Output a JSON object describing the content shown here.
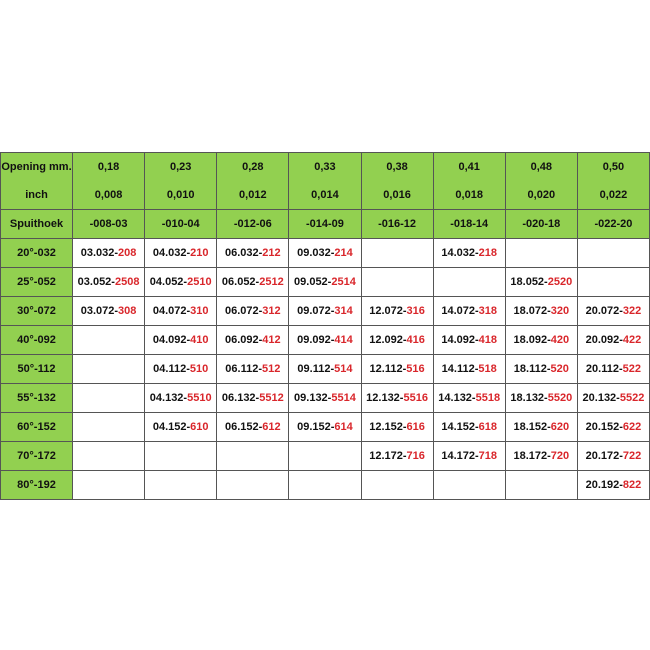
{
  "header": {
    "opening_label": "Opening mm.",
    "inch_label": "inch",
    "angle_label": "Spuithoek",
    "openings": [
      "0,18",
      "0,23",
      "0,28",
      "0,33",
      "0,38",
      "0,41",
      "0,48",
      "0,50"
    ],
    "inches": [
      "0,008",
      "0,010",
      "0,012",
      "0,014",
      "0,016",
      "0,018",
      "0,020",
      "0,022"
    ],
    "codes": [
      "-008-03",
      "-010-04",
      "-012-06",
      "-014-09",
      "-016-12",
      "-018-14",
      "-020-18",
      "-022-20"
    ]
  },
  "colors": {
    "header_bg": "#92d050",
    "suffix": "#d9262b"
  },
  "rows": [
    {
      "angle": "20°-032",
      "cells": [
        [
          "03.032-",
          "208"
        ],
        [
          "04.032-",
          "210"
        ],
        [
          "06.032-",
          "212"
        ],
        [
          "09.032-",
          "214"
        ],
        null,
        [
          "14.032-",
          "218"
        ],
        null,
        null
      ]
    },
    {
      "angle": "25°-052",
      "cells": [
        [
          "03.052-",
          "2508"
        ],
        [
          "04.052-",
          "2510"
        ],
        [
          "06.052-",
          "2512"
        ],
        [
          "09.052-",
          "2514"
        ],
        null,
        null,
        [
          "18.052-",
          "2520"
        ],
        null
      ]
    },
    {
      "angle": "30°-072",
      "cells": [
        [
          "03.072-",
          "308"
        ],
        [
          "04.072-",
          "310"
        ],
        [
          "06.072-",
          "312"
        ],
        [
          "09.072-",
          "314"
        ],
        [
          "12.072-",
          "316"
        ],
        [
          "14.072-",
          "318"
        ],
        [
          "18.072-",
          "320"
        ],
        [
          "20.072-",
          "322"
        ]
      ]
    },
    {
      "angle": "40°-092",
      "cells": [
        null,
        [
          "04.092-",
          "410"
        ],
        [
          "06.092-",
          "412"
        ],
        [
          "09.092-",
          "414"
        ],
        [
          "12.092-",
          "416"
        ],
        [
          "14.092-",
          "418"
        ],
        [
          "18.092-",
          "420"
        ],
        [
          "20.092-",
          "422"
        ]
      ]
    },
    {
      "angle": "50°-112",
      "cells": [
        null,
        [
          "04.112-",
          "510"
        ],
        [
          "06.112-",
          "512"
        ],
        [
          "09.112-",
          "514"
        ],
        [
          "12.112-",
          "516"
        ],
        [
          "14.112-",
          "518"
        ],
        [
          "18.112-",
          "520"
        ],
        [
          "20.112-",
          "522"
        ]
      ]
    },
    {
      "angle": "55°-132",
      "cells": [
        null,
        [
          "04.132-",
          "5510"
        ],
        [
          "06.132-",
          "5512"
        ],
        [
          "09.132-",
          "5514"
        ],
        [
          "12.132-",
          "5516"
        ],
        [
          "14.132-",
          "5518"
        ],
        [
          "18.132-",
          "5520"
        ],
        [
          "20.132-",
          "5522"
        ]
      ]
    },
    {
      "angle": "60°-152",
      "cells": [
        null,
        [
          "04.152-",
          "610"
        ],
        [
          "06.152-",
          "612"
        ],
        [
          "09.152-",
          "614"
        ],
        [
          "12.152-",
          "616"
        ],
        [
          "14.152-",
          "618"
        ],
        [
          "18.152-",
          "620"
        ],
        [
          "20.152-",
          "622"
        ]
      ]
    },
    {
      "angle": "70°-172",
      "cells": [
        null,
        null,
        null,
        null,
        [
          "12.172-",
          "716"
        ],
        [
          "14.172-",
          "718"
        ],
        [
          "18.172-",
          "720"
        ],
        [
          "20.172-",
          "722"
        ]
      ]
    },
    {
      "angle": "80°-192",
      "cells": [
        null,
        null,
        null,
        null,
        null,
        null,
        null,
        [
          "20.192-",
          "822"
        ]
      ]
    }
  ]
}
